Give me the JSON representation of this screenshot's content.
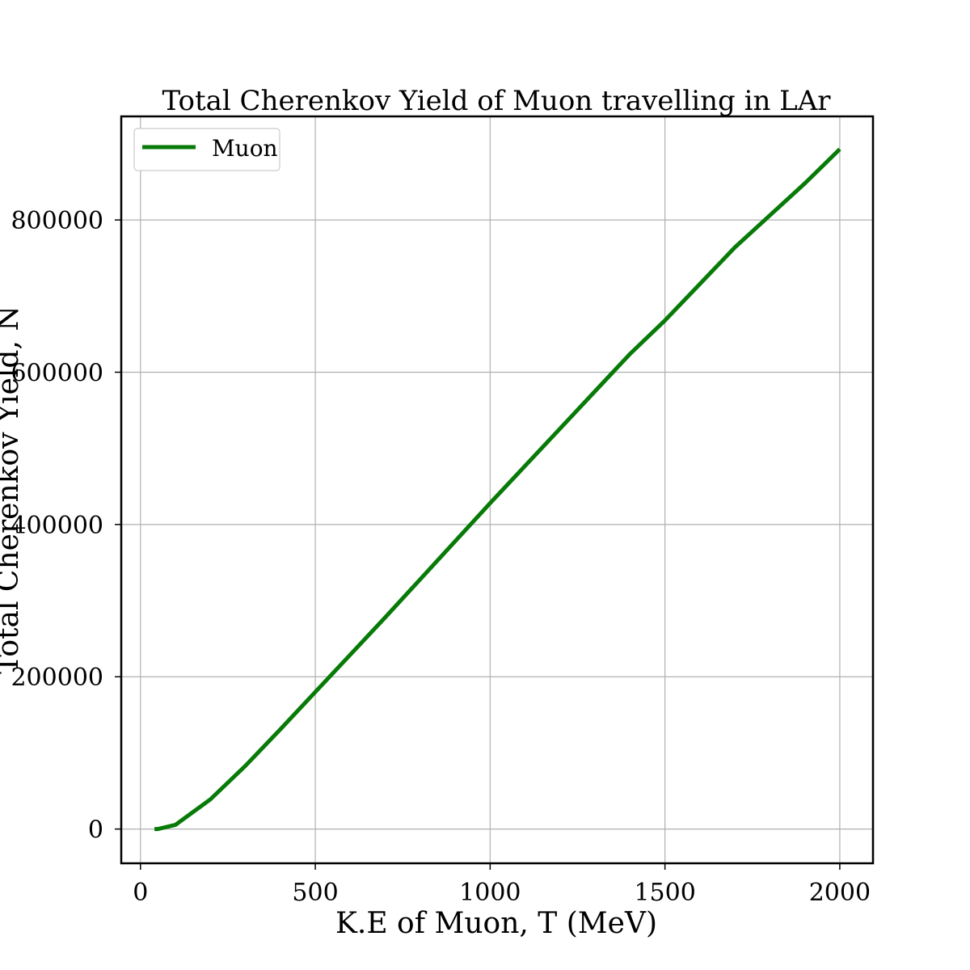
{
  "chart_data": {
    "type": "line",
    "title": "Total Cherenkov Yield of Muon travelling in LAr",
    "xlabel": "K.E of Muon, T (MeV)",
    "ylabel": "Total Cherenkov Yield, N",
    "xlim": [
      -55,
      2095
    ],
    "ylim": [
      -45000,
      936000
    ],
    "xticks": [
      0,
      500,
      1000,
      1500,
      2000
    ],
    "xtick_labels": [
      "0",
      "500",
      "1000",
      "1500",
      "2000"
    ],
    "yticks": [
      0,
      200000,
      400000,
      600000,
      800000
    ],
    "ytick_labels": [
      "0",
      "200000",
      "400000",
      "600000",
      "800000"
    ],
    "grid": true,
    "legend_position": "top-left",
    "series": [
      {
        "name": "Muon",
        "color": "#077a07",
        "x": [
          40,
          50,
          100,
          200,
          300,
          400,
          500,
          600,
          700,
          800,
          900,
          1000,
          1100,
          1200,
          1300,
          1400,
          1500,
          1600,
          1700,
          1800,
          1900,
          2000
        ],
        "y": [
          0,
          0,
          5500,
          39000,
          83000,
          131000,
          180000,
          229000,
          278000,
          328000,
          378000,
          428000,
          477000,
          526000,
          575000,
          624000,
          668000,
          716000,
          764000,
          806000,
          848000,
          893000
        ]
      }
    ]
  }
}
